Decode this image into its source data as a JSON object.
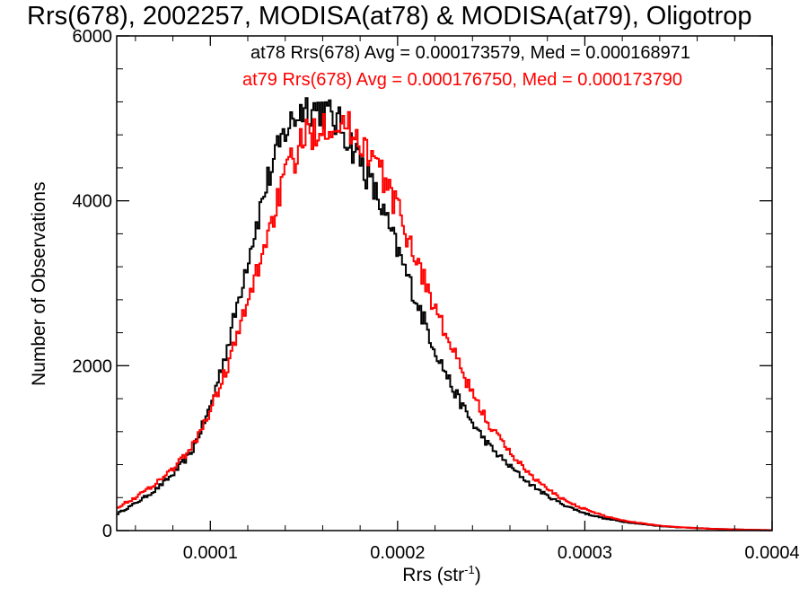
{
  "chart_data": {
    "type": "histogram",
    "title": "Rrs(678), 2002257, MODISA(at78) & MODISA(at79), Oligotrop",
    "xlabel": "Rrs (str",
    "xlabel_sup": "-1",
    "xlabel_close": ")",
    "ylabel": "Number of Observations",
    "xlim": [
      5e-05,
      0.0004
    ],
    "ylim": [
      0,
      6000
    ],
    "x_ticks": [
      0.0001,
      0.0002,
      0.0003,
      0.0004
    ],
    "x_tick_labels": [
      "0.0001",
      "0.0002",
      "0.0003",
      "0.0004"
    ],
    "y_ticks": [
      0,
      2000,
      4000,
      6000
    ],
    "y_tick_labels": [
      "0",
      "2000",
      "4000",
      "6000"
    ],
    "grid": false,
    "annotations": [
      {
        "text": "at78 Rrs(678) Avg = 0.000173579, Med = 0.000168971",
        "color": "#000000"
      },
      {
        "text": "at79 Rrs(678) Avg = 0.000176750, Med = 0.000173790",
        "color": "#ff0000"
      }
    ],
    "series": [
      {
        "color": "#000000",
        "x": [
          5e-05,
          6e-05,
          7e-05,
          8e-05,
          9e-05,
          0.0001,
          0.00011,
          0.00012,
          0.00013,
          0.00014,
          0.00015,
          0.00016,
          0.00017,
          0.00018,
          0.00019,
          0.0002,
          0.00021,
          0.00022,
          0.00023,
          0.00024,
          0.00025,
          0.00026,
          0.00027,
          0.00028,
          0.00029,
          0.0003,
          0.00031,
          0.00032,
          0.00033,
          0.00034,
          0.00035,
          0.00036,
          0.00037,
          0.00038,
          0.00039,
          0.0004
        ],
        "y": [
          200,
          330,
          480,
          680,
          950,
          1500,
          2300,
          3300,
          4200,
          4850,
          5150,
          5100,
          4900,
          4500,
          4000,
          3400,
          2800,
          2200,
          1700,
          1300,
          1000,
          780,
          580,
          420,
          300,
          210,
          150,
          110,
          80,
          55,
          40,
          30,
          20,
          14,
          8,
          5
        ]
      },
      {
        "color": "#ff0000",
        "x": [
          5e-05,
          6e-05,
          7e-05,
          8e-05,
          9e-05,
          0.0001,
          0.00011,
          0.00012,
          0.00013,
          0.00014,
          0.00015,
          0.00016,
          0.00017,
          0.00018,
          0.00019,
          0.0002,
          0.00021,
          0.00022,
          0.00023,
          0.00024,
          0.00025,
          0.00026,
          0.00027,
          0.00028,
          0.00029,
          0.0003,
          0.00031,
          0.00032,
          0.00033,
          0.00034,
          0.00035,
          0.00036,
          0.00037,
          0.00038,
          0.00039,
          0.0004
        ],
        "y": [
          280,
          400,
          560,
          750,
          1000,
          1450,
          2050,
          2750,
          3550,
          4300,
          4750,
          4950,
          4950,
          4750,
          4400,
          3900,
          3300,
          2700,
          2150,
          1650,
          1250,
          950,
          700,
          500,
          360,
          260,
          180,
          125,
          90,
          60,
          42,
          30,
          20,
          14,
          9,
          5
        ]
      }
    ]
  }
}
